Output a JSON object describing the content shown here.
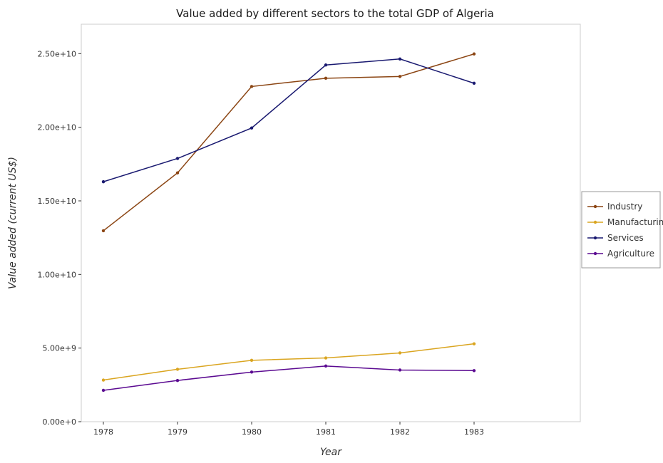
{
  "chart_data": {
    "type": "line",
    "title": "Value added by different sectors to the total GDP of Algeria",
    "xlabel": "Year",
    "ylabel": "Value added (current US$)",
    "categories": [
      "1978",
      "1979",
      "1980",
      "1981",
      "1982",
      "1983"
    ],
    "ylim": [
      0,
      27000000000
    ],
    "yticks": [
      0,
      5000000000,
      10000000000,
      15000000000,
      20000000000,
      25000000000
    ],
    "ytick_labels": [
      "0.00e+0",
      "5.00e+9",
      "1.00e+10",
      "1.50e+10",
      "2.00e+10",
      "2.50e+10"
    ],
    "legend_position": "right",
    "grid": false,
    "series": [
      {
        "name": "Industry",
        "color": "#8b4513",
        "values": [
          12970000000,
          16900000000,
          22770000000,
          23330000000,
          23450000000,
          24980000000
        ]
      },
      {
        "name": "Manufacturing",
        "color": "#daa520",
        "values": [
          2830000000,
          3560000000,
          4170000000,
          4330000000,
          4670000000,
          5290000000
        ]
      },
      {
        "name": "Services",
        "color": "#191970",
        "values": [
          16300000000,
          17880000000,
          19950000000,
          24230000000,
          24640000000,
          22990000000
        ]
      },
      {
        "name": "Agriculture",
        "color": "#5b0a91",
        "values": [
          2130000000,
          2800000000,
          3370000000,
          3780000000,
          3510000000,
          3470000000
        ]
      }
    ]
  }
}
